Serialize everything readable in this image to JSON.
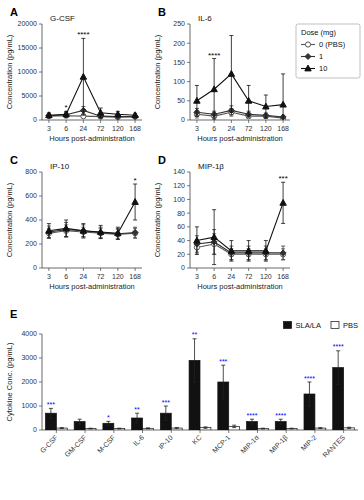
{
  "chart_data": [
    {
      "type": "line",
      "panel": "A",
      "title": "G-CSF",
      "xlabel": "Hours post-administration",
      "ylabel": "Concentration (pg/mL)",
      "categories": [
        "3",
        "6",
        "24",
        "72",
        "120",
        "168"
      ],
      "ylim": [
        0,
        20000
      ],
      "yticks": [
        0,
        5000,
        10000,
        15000,
        20000
      ],
      "grid": false,
      "series": [
        {
          "color": "#555555",
          "marker": "open-circle",
          "values": [
            800,
            900,
            800,
            700,
            600,
            700
          ],
          "errors": [
            300,
            400,
            300,
            200,
            200,
            200
          ]
        },
        {
          "color": "#333333",
          "marker": "diamond",
          "values": [
            900,
            1100,
            2000,
            800,
            700,
            700
          ],
          "errors": [
            400,
            500,
            800,
            300,
            250,
            250
          ]
        },
        {
          "color": "#111111",
          "marker": "triangle",
          "values": [
            1000,
            1200,
            9000,
            1500,
            1200,
            1000
          ],
          "errors": [
            500,
            600,
            8000,
            1000,
            600,
            400
          ]
        }
      ],
      "annotations": [
        {
          "text": "*",
          "category": "6"
        },
        {
          "text": "****",
          "category": "24"
        }
      ]
    },
    {
      "type": "line",
      "panel": "B",
      "title": "IL-6",
      "xlabel": "Hours post-administration",
      "ylabel": "Concentration (pg/mL)",
      "categories": [
        "3",
        "6",
        "24",
        "72",
        "120",
        "168"
      ],
      "ylim": [
        0,
        250
      ],
      "yticks": [
        0,
        50,
        100,
        150,
        200,
        250
      ],
      "grid": false,
      "legend": "right",
      "legend_title": "Dose (mg)",
      "series": [
        {
          "name": "0 (PBS)",
          "color": "#555555",
          "marker": "open-circle",
          "values": [
            15,
            10,
            20,
            10,
            10,
            5
          ],
          "errors": [
            10,
            5,
            10,
            5,
            5,
            3
          ]
        },
        {
          "name": "1",
          "color": "#333333",
          "marker": "diamond",
          "values": [
            20,
            15,
            25,
            15,
            12,
            8
          ],
          "errors": [
            10,
            8,
            12,
            8,
            6,
            4
          ]
        },
        {
          "name": "10",
          "color": "#111111",
          "marker": "triangle",
          "values": [
            50,
            80,
            120,
            50,
            35,
            40
          ],
          "errors": [
            40,
            80,
            100,
            40,
            30,
            80
          ]
        }
      ],
      "annotations": [
        {
          "text": "****",
          "category": "6"
        }
      ]
    },
    {
      "type": "line",
      "panel": "C",
      "title": "IP-10",
      "xlabel": "Hours post-administration",
      "ylabel": "Concentration (pg/mL)",
      "categories": [
        "3",
        "6",
        "24",
        "72",
        "120",
        "168"
      ],
      "ylim": [
        0,
        800
      ],
      "yticks": [
        0,
        200,
        400,
        600,
        800
      ],
      "grid": false,
      "series": [
        {
          "color": "#555555",
          "marker": "open-circle",
          "values": [
            290,
            310,
            300,
            290,
            280,
            290
          ],
          "errors": [
            40,
            50,
            40,
            40,
            40,
            40
          ]
        },
        {
          "color": "#333333",
          "marker": "diamond",
          "values": [
            300,
            320,
            310,
            295,
            285,
            295
          ],
          "errors": [
            50,
            60,
            50,
            45,
            45,
            45
          ]
        },
        {
          "color": "#111111",
          "marker": "triangle",
          "values": [
            310,
            330,
            310,
            300,
            290,
            550
          ],
          "errors": [
            60,
            70,
            60,
            55,
            50,
            150
          ]
        }
      ],
      "annotations": [
        {
          "text": "*",
          "category": "168"
        }
      ]
    },
    {
      "type": "line",
      "panel": "D",
      "title": "MIP-1β",
      "xlabel": "Hours post-administration",
      "ylabel": "Concentration (pg/mL)",
      "categories": [
        "3",
        "6",
        "24",
        "72",
        "120",
        "168"
      ],
      "ylim": [
        0,
        140
      ],
      "yticks": [
        0,
        20,
        40,
        60,
        80,
        100,
        120,
        140
      ],
      "grid": false,
      "series": [
        {
          "color": "#555555",
          "marker": "open-circle",
          "values": [
            30,
            35,
            20,
            20,
            20,
            20
          ],
          "errors": [
            10,
            15,
            8,
            8,
            8,
            8
          ]
        },
        {
          "color": "#333333",
          "marker": "diamond",
          "values": [
            35,
            38,
            22,
            22,
            22,
            22
          ],
          "errors": [
            12,
            18,
            10,
            10,
            10,
            10
          ]
        },
        {
          "color": "#111111",
          "marker": "triangle",
          "values": [
            40,
            45,
            25,
            25,
            25,
            95
          ],
          "errors": [
            20,
            40,
            15,
            15,
            15,
            30
          ]
        }
      ],
      "annotations": [
        {
          "text": "***",
          "category": "168"
        }
      ]
    },
    {
      "type": "bar",
      "panel": "E",
      "ylabel": "Cytokine Conc. (pg/mL)",
      "categories": [
        "G-CSF",
        "GM-CSF",
        "M-CSF",
        "IL-6",
        "IP-10",
        "KC",
        "MCP-1",
        "MIP-1α",
        "MIP-1β",
        "MIP-2",
        "RANTES"
      ],
      "ylim": [
        0,
        4000
      ],
      "yticks": [
        0,
        1000,
        2000,
        3000,
        4000
      ],
      "grid": false,
      "legend": "upper right",
      "series": [
        {
          "name": "SLA/LA",
          "color": "#111111",
          "values": [
            700,
            350,
            280,
            500,
            700,
            2900,
            2000,
            350,
            350,
            1500,
            2600
          ],
          "errors": [
            200,
            100,
            80,
            200,
            300,
            900,
            700,
            100,
            100,
            500,
            700
          ]
        },
        {
          "name": "PBS",
          "color": "white",
          "values": [
            80,
            60,
            60,
            70,
            80,
            100,
            150,
            60,
            60,
            80,
            90
          ],
          "errors": [
            20,
            15,
            15,
            20,
            25,
            30,
            50,
            15,
            15,
            20,
            25
          ]
        }
      ],
      "annotations": [
        {
          "text": "***",
          "category": "G-CSF",
          "color": "blue"
        },
        {
          "text": "*",
          "category": "M-CSF",
          "color": "blue"
        },
        {
          "text": "**",
          "category": "IL-6",
          "color": "blue"
        },
        {
          "text": "***",
          "category": "IP-10",
          "color": "blue"
        },
        {
          "text": "**",
          "category": "KC",
          "color": "blue"
        },
        {
          "text": "***",
          "category": "MCP-1",
          "color": "blue"
        },
        {
          "text": "****",
          "category": "MIP-1α",
          "color": "blue"
        },
        {
          "text": "****",
          "category": "MIP-1β",
          "color": "blue"
        },
        {
          "text": "****",
          "category": "MIP-2",
          "color": "blue"
        },
        {
          "text": "****",
          "category": "RANTES",
          "color": "blue"
        }
      ]
    }
  ]
}
